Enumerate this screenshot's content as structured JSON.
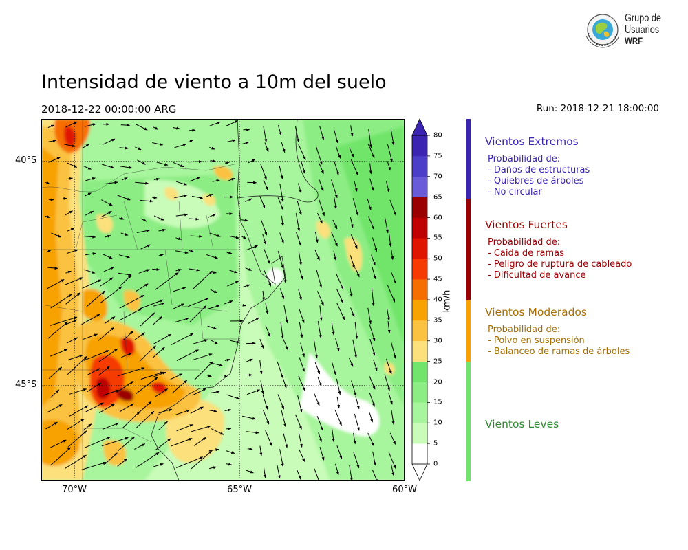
{
  "header": {
    "title": "Intensidad de viento a 10m del suelo",
    "valid_time": "2018-12-22 00:00:00 ARG",
    "run_time": "Run: 2018-12-21 18:00:00"
  },
  "logo": {
    "line1": "Grupo de",
    "line2": "Usuarios",
    "line3": "WRF"
  },
  "map": {
    "lat_labels": [
      "40°S",
      "45°S"
    ],
    "lon_labels": [
      "70°W",
      "65°W",
      "60°W"
    ],
    "projection_extent": {
      "lon": [
        -71,
        -60
      ],
      "lat": [
        -39.1,
        -47.3
      ]
    }
  },
  "colorbar": {
    "unit": "km/h",
    "ticks": [
      "0",
      "5",
      "10",
      "15",
      "20",
      "25",
      "30",
      "35",
      "40",
      "45",
      "50",
      "55",
      "60",
      "65",
      "70",
      "75",
      "80"
    ],
    "colors": [
      "#ffffff",
      "#c8fcb8",
      "#a7f59c",
      "#8ced84",
      "#71e56b",
      "#fbe07c",
      "#fac240",
      "#f7a200",
      "#f76e00",
      "#f53b00",
      "#e01500",
      "#bf0000",
      "#9b0000",
      "#6a5cd9",
      "#4d3ec9",
      "#3b24b1"
    ]
  },
  "categories": [
    {
      "title": "Vientos Extremos",
      "color": "#3b24b1",
      "lines": [
        "Probabilidad de:",
        "- Daños de estructuras",
        "- Quiebres de árboles",
        "- No circular"
      ]
    },
    {
      "title": "Vientos Fuertes",
      "color": "#9b0000",
      "lines": [
        "Probabilidad de:",
        "- Caida de ramas",
        "- Peligro de ruptura de cableado",
        "- Dificultad de avance"
      ]
    },
    {
      "title": "Vientos Moderados",
      "color": "#a86e00",
      "bar_color": "#f7a200",
      "lines": [
        "Probabilidad de:",
        "- Polvo en suspensión",
        "- Balanceo de ramas de árboles"
      ]
    },
    {
      "title": "Vientos Leves",
      "color": "#2e8b2e",
      "bar_color": "#71e56b",
      "lines": []
    }
  ]
}
